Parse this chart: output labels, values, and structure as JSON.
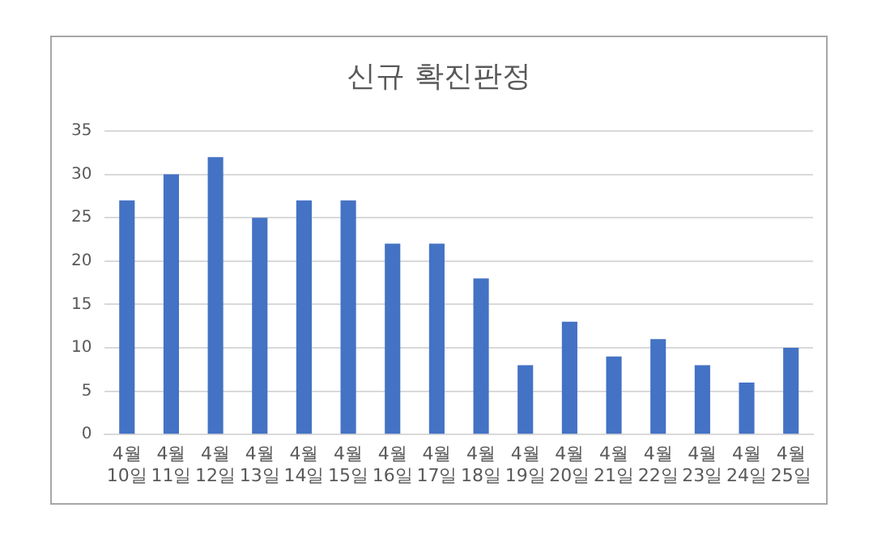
{
  "chart_data": {
    "type": "bar",
    "title": "신규 확진판정",
    "categories": [
      "4월 10일",
      "4월 11일",
      "4월 12일",
      "4월 13일",
      "4월 14일",
      "4월 15일",
      "4월 16일",
      "4월 17일",
      "4월 18일",
      "4월 19일",
      "4월 20일",
      "4월 21일",
      "4월 22일",
      "4월 23일",
      "4월 24일",
      "4월 25일"
    ],
    "values": [
      27,
      30,
      32,
      25,
      27,
      27,
      22,
      22,
      18,
      8,
      13,
      9,
      11,
      8,
      6,
      10
    ],
    "color": "#4472c4",
    "ylim": [
      0,
      35
    ],
    "yticks": [
      0,
      5,
      10,
      15,
      20,
      25,
      30,
      35
    ],
    "grid": "y"
  }
}
